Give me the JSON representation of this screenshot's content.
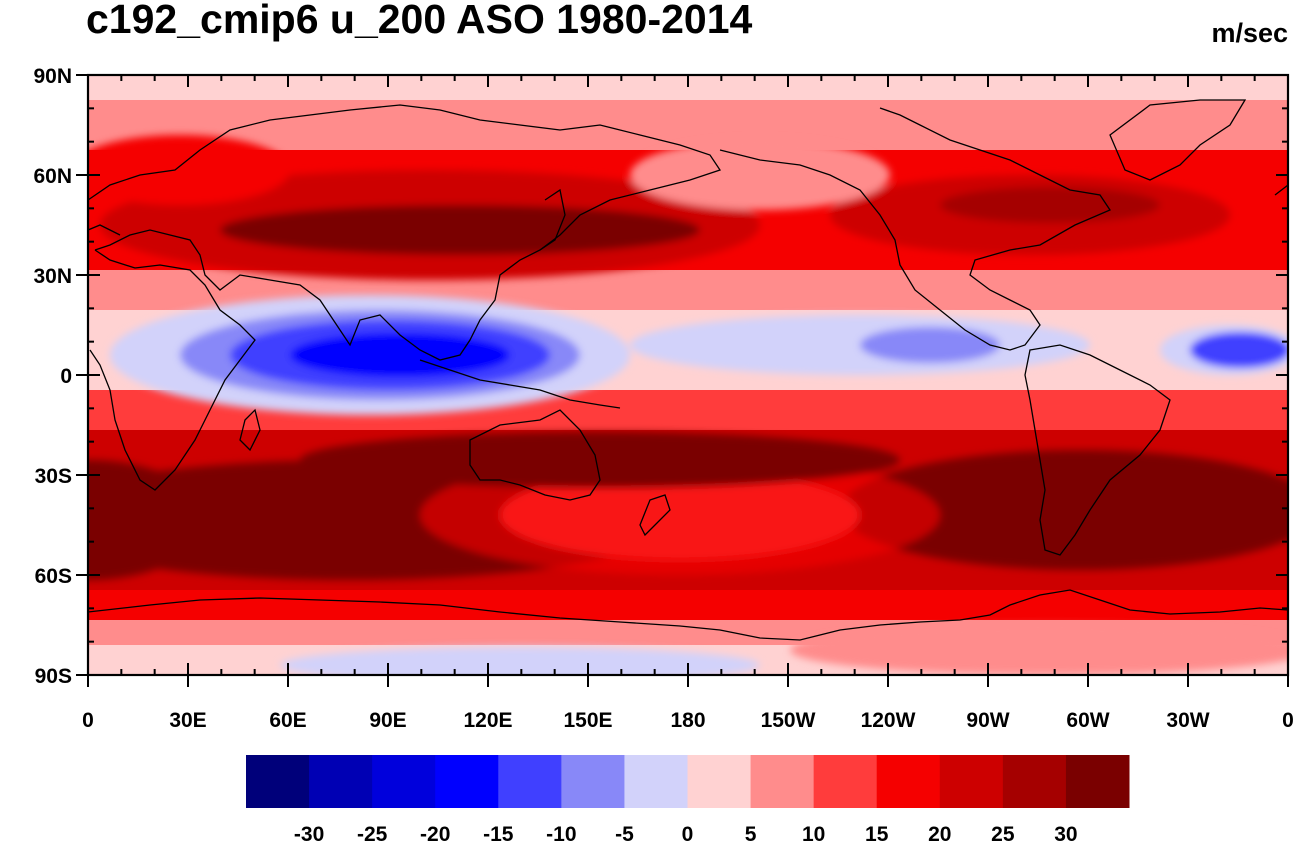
{
  "title": "c192_cmip6 u_200 ASO 1980-2014",
  "units": "m/sec",
  "lat_labels": [
    "90N",
    "60N",
    "30N",
    "0",
    "30S",
    "60S",
    "90S"
  ],
  "lon_labels": [
    "0",
    "30E",
    "60E",
    "90E",
    "120E",
    "150E",
    "180",
    "150W",
    "120W",
    "90W",
    "60W",
    "30W",
    "0"
  ],
  "colorbar": {
    "labels": [
      "-30",
      "-25",
      "-20",
      "-15",
      "-10",
      "-5",
      "0",
      "5",
      "10",
      "15",
      "20",
      "25",
      "30"
    ],
    "colors": [
      "#00007a",
      "#0000b4",
      "#0000dc",
      "#0000ff",
      "#4040ff",
      "#8888f8",
      "#d2d2fa",
      "#ffd2d2",
      "#ff8c8c",
      "#ff3c3c",
      "#f50000",
      "#cd0000",
      "#a50000",
      "#7a0000"
    ]
  }
}
